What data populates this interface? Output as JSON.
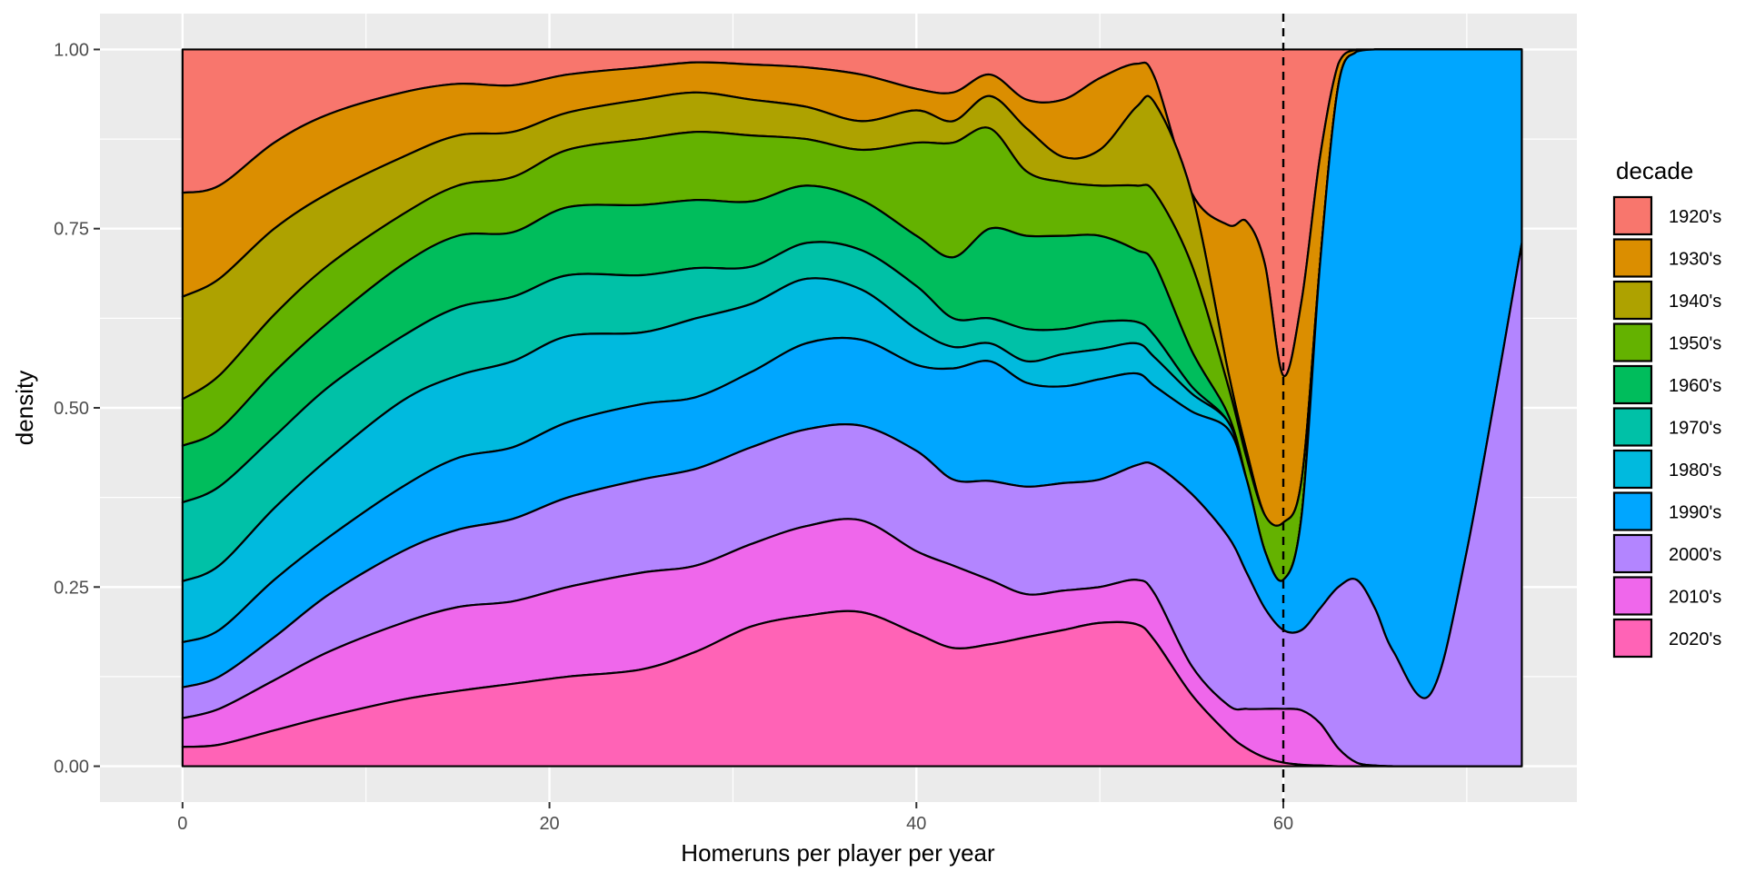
{
  "chart_data": {
    "type": "area",
    "subtype": "stacked-proportional-density",
    "xlabel": "Homeruns per player per year",
    "ylabel": "density",
    "xlim": [
      -4.5,
      76
    ],
    "ylim": [
      -0.05,
      1.05
    ],
    "x_ticks": [
      0,
      20,
      40,
      60
    ],
    "x_tick_labels": [
      "0",
      "20",
      "40",
      "60"
    ],
    "y_ticks": [
      0,
      0.25,
      0.5,
      0.75,
      1.0
    ],
    "y_tick_labels": [
      "0.00",
      "0.25",
      "0.50",
      "0.75",
      "1.00"
    ],
    "grid": true,
    "reference_line": {
      "x": 60,
      "style": "dashed",
      "color": "#000000"
    },
    "legend": {
      "title": "decade",
      "position": "right",
      "entries": [
        {
          "label": "1920's",
          "color": "#F8766D"
        },
        {
          "label": "1930's",
          "color": "#DB8E00"
        },
        {
          "label": "1940's",
          "color": "#AEA200"
        },
        {
          "label": "1950's",
          "color": "#64B200"
        },
        {
          "label": "1960's",
          "color": "#00BD5C"
        },
        {
          "label": "1970's",
          "color": "#00C1A7"
        },
        {
          "label": "1980's",
          "color": "#00BADE"
        },
        {
          "label": "1990's",
          "color": "#00A6FF"
        },
        {
          "label": "2000's",
          "color": "#B385FF"
        },
        {
          "label": "2010's",
          "color": "#EF67EB"
        },
        {
          "label": "2020's",
          "color": "#FF63B6"
        }
      ]
    },
    "x": [
      0,
      2,
      5,
      8,
      12,
      15,
      18,
      21,
      25,
      28,
      31,
      34,
      37,
      40,
      42,
      44,
      46,
      48,
      50,
      52,
      53,
      55,
      57,
      58,
      59,
      60,
      61,
      62,
      63,
      64,
      65,
      66,
      68,
      70,
      73
    ],
    "boundaries_top_of_series": [
      {
        "name": "1920's",
        "values": [
          1.0,
          1.0,
          1.0,
          1.0,
          1.0,
          1.0,
          1.0,
          1.0,
          1.0,
          1.0,
          1.0,
          1.0,
          1.0,
          1.0,
          1.0,
          1.0,
          1.0,
          1.0,
          1.0,
          1.0,
          1.0,
          1.0,
          1.0,
          1.0,
          1.0,
          1.0,
          1.0,
          1.0,
          1.0,
          1.0,
          1.0,
          1.0,
          1.0,
          1.0,
          1.0
        ]
      },
      {
        "name": "1930's",
        "values": [
          0.8,
          0.81,
          0.87,
          0.91,
          0.94,
          0.952,
          0.95,
          0.965,
          0.975,
          0.982,
          0.979,
          0.975,
          0.965,
          0.945,
          0.94,
          0.965,
          0.93,
          0.93,
          0.96,
          0.98,
          0.96,
          0.8,
          0.755,
          0.76,
          0.7,
          0.545,
          0.65,
          0.85,
          0.98,
          1.0,
          1.0,
          1.0,
          1.0,
          1.0,
          1.0
        ]
      },
      {
        "name": "1940's",
        "values": [
          0.655,
          0.68,
          0.75,
          0.8,
          0.85,
          0.88,
          0.885,
          0.912,
          0.93,
          0.94,
          0.93,
          0.92,
          0.9,
          0.915,
          0.9,
          0.935,
          0.89,
          0.85,
          0.86,
          0.92,
          0.925,
          0.8,
          0.55,
          0.44,
          0.35,
          0.34,
          0.4,
          0.7,
          0.95,
          0.997,
          1.0,
          1.0,
          1.0,
          1.0,
          1.0
        ]
      },
      {
        "name": "1950's",
        "values": [
          0.512,
          0.545,
          0.63,
          0.7,
          0.77,
          0.81,
          0.822,
          0.86,
          0.875,
          0.885,
          0.88,
          0.875,
          0.86,
          0.87,
          0.87,
          0.89,
          0.83,
          0.815,
          0.81,
          0.81,
          0.8,
          0.7,
          0.53,
          0.43,
          0.35,
          0.34,
          0.4,
          0.7,
          0.95,
          0.997,
          1.0,
          1.0,
          1.0,
          1.0,
          1.0
        ]
      },
      {
        "name": "1960's",
        "values": [
          0.447,
          0.47,
          0.55,
          0.62,
          0.7,
          0.74,
          0.745,
          0.78,
          0.783,
          0.79,
          0.788,
          0.81,
          0.79,
          0.74,
          0.71,
          0.75,
          0.74,
          0.74,
          0.74,
          0.72,
          0.7,
          0.58,
          0.49,
          0.4,
          0.3,
          0.26,
          0.35,
          0.7,
          0.95,
          0.997,
          1.0,
          1.0,
          1.0,
          1.0,
          1.0
        ]
      },
      {
        "name": "1970's",
        "values": [
          0.368,
          0.39,
          0.46,
          0.53,
          0.6,
          0.64,
          0.655,
          0.685,
          0.685,
          0.695,
          0.697,
          0.73,
          0.72,
          0.67,
          0.625,
          0.625,
          0.61,
          0.61,
          0.62,
          0.62,
          0.6,
          0.53,
          0.48,
          0.4,
          0.3,
          0.26,
          0.35,
          0.7,
          0.95,
          0.997,
          1.0,
          1.0,
          1.0,
          1.0,
          1.0
        ]
      },
      {
        "name": "1980's",
        "values": [
          0.258,
          0.28,
          0.36,
          0.43,
          0.51,
          0.545,
          0.565,
          0.6,
          0.605,
          0.625,
          0.645,
          0.68,
          0.665,
          0.61,
          0.585,
          0.59,
          0.565,
          0.575,
          0.582,
          0.59,
          0.57,
          0.52,
          0.48,
          0.4,
          0.3,
          0.26,
          0.35,
          0.7,
          0.95,
          0.997,
          1.0,
          1.0,
          1.0,
          1.0,
          1.0
        ]
      },
      {
        "name": "1990's",
        "values": [
          0.173,
          0.19,
          0.26,
          0.32,
          0.39,
          0.43,
          0.445,
          0.48,
          0.505,
          0.515,
          0.55,
          0.59,
          0.595,
          0.56,
          0.555,
          0.565,
          0.535,
          0.53,
          0.54,
          0.548,
          0.53,
          0.495,
          0.47,
          0.4,
          0.3,
          0.26,
          0.35,
          0.7,
          0.95,
          0.997,
          1.0,
          1.0,
          1.0,
          1.0,
          1.0
        ]
      },
      {
        "name": "2000's",
        "values": [
          0.11,
          0.125,
          0.18,
          0.24,
          0.3,
          0.33,
          0.345,
          0.375,
          0.4,
          0.415,
          0.445,
          0.47,
          0.475,
          0.44,
          0.4,
          0.398,
          0.39,
          0.395,
          0.4,
          0.42,
          0.42,
          0.38,
          0.32,
          0.27,
          0.22,
          0.19,
          0.19,
          0.22,
          0.25,
          0.26,
          0.22,
          0.16,
          0.1,
          0.3,
          0.73
        ]
      },
      {
        "name": "2010's",
        "values": [
          0.067,
          0.08,
          0.12,
          0.16,
          0.2,
          0.222,
          0.23,
          0.25,
          0.27,
          0.28,
          0.31,
          0.335,
          0.343,
          0.3,
          0.28,
          0.26,
          0.24,
          0.245,
          0.25,
          0.26,
          0.24,
          0.14,
          0.085,
          0.08,
          0.08,
          0.08,
          0.078,
          0.06,
          0.025,
          0.005,
          0.001,
          0.0,
          0.0,
          0.0,
          0.0
        ]
      },
      {
        "name": "2020's",
        "values": [
          0.027,
          0.03,
          0.05,
          0.07,
          0.093,
          0.105,
          0.115,
          0.125,
          0.135,
          0.16,
          0.195,
          0.21,
          0.215,
          0.185,
          0.165,
          0.17,
          0.18,
          0.19,
          0.2,
          0.198,
          0.175,
          0.1,
          0.045,
          0.025,
          0.012,
          0.005,
          0.002,
          0.001,
          0.0,
          0.0,
          0.0,
          0.0,
          0.0,
          0.0,
          0.0
        ]
      }
    ]
  }
}
